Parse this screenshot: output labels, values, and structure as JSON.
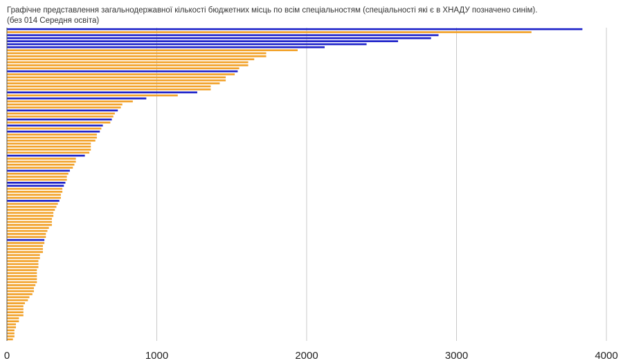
{
  "chart_data": {
    "type": "bar",
    "orientation": "horizontal",
    "title": [
      "Графічне представлення загальнодержавної кількості бюджетних місць по всім спеціальностям (спеціальності які є в ХНАДУ позначено синім).",
      "(без 014 Середня освіта)"
    ],
    "xlabel": "",
    "ylabel": "",
    "xlim": [
      0,
      4000
    ],
    "x_ticks": [
      "0",
      "1000",
      "2000",
      "3000",
      "4000"
    ],
    "grid": "vertical",
    "legend": "none",
    "colors": {
      "khnadu": "#1d22c9",
      "other": "#f2a22a",
      "grid": "#c8c8c8",
      "axis": "#555555"
    },
    "values": [
      3840,
      3500,
      2880,
      2830,
      2610,
      2400,
      2120,
      1940,
      1730,
      1730,
      1650,
      1610,
      1610,
      1550,
      1540,
      1520,
      1460,
      1460,
      1420,
      1360,
      1360,
      1270,
      1140,
      930,
      840,
      770,
      760,
      740,
      720,
      710,
      700,
      690,
      640,
      630,
      620,
      600,
      600,
      590,
      560,
      560,
      560,
      550,
      520,
      460,
      460,
      450,
      440,
      420,
      410,
      400,
      400,
      390,
      380,
      370,
      370,
      360,
      360,
      350,
      340,
      330,
      320,
      310,
      310,
      300,
      300,
      300,
      280,
      270,
      260,
      260,
      250,
      250,
      240,
      240,
      240,
      220,
      220,
      210,
      210,
      210,
      200,
      200,
      200,
      200,
      200,
      190,
      180,
      180,
      170,
      150,
      140,
      120,
      110,
      110,
      110,
      110,
      80,
      80,
      60,
      60,
      50,
      50,
      50,
      40
    ],
    "khnadu": [
      true,
      false,
      true,
      true,
      true,
      true,
      true,
      false,
      false,
      false,
      false,
      false,
      false,
      false,
      true,
      false,
      false,
      false,
      false,
      false,
      false,
      true,
      false,
      true,
      false,
      false,
      false,
      true,
      false,
      false,
      true,
      false,
      true,
      false,
      true,
      false,
      false,
      false,
      false,
      false,
      false,
      false,
      true,
      false,
      false,
      false,
      false,
      true,
      false,
      false,
      false,
      true,
      true,
      false,
      false,
      false,
      false,
      true,
      false,
      false,
      false,
      false,
      false,
      false,
      false,
      false,
      false,
      false,
      false,
      false,
      true,
      false,
      false,
      false,
      false,
      false,
      false,
      false,
      false,
      false,
      false,
      false,
      false,
      false,
      false,
      false,
      false,
      false,
      false,
      false,
      false,
      false,
      false,
      false,
      false,
      false,
      false,
      false,
      false,
      false,
      false,
      false,
      false,
      false
    ]
  }
}
